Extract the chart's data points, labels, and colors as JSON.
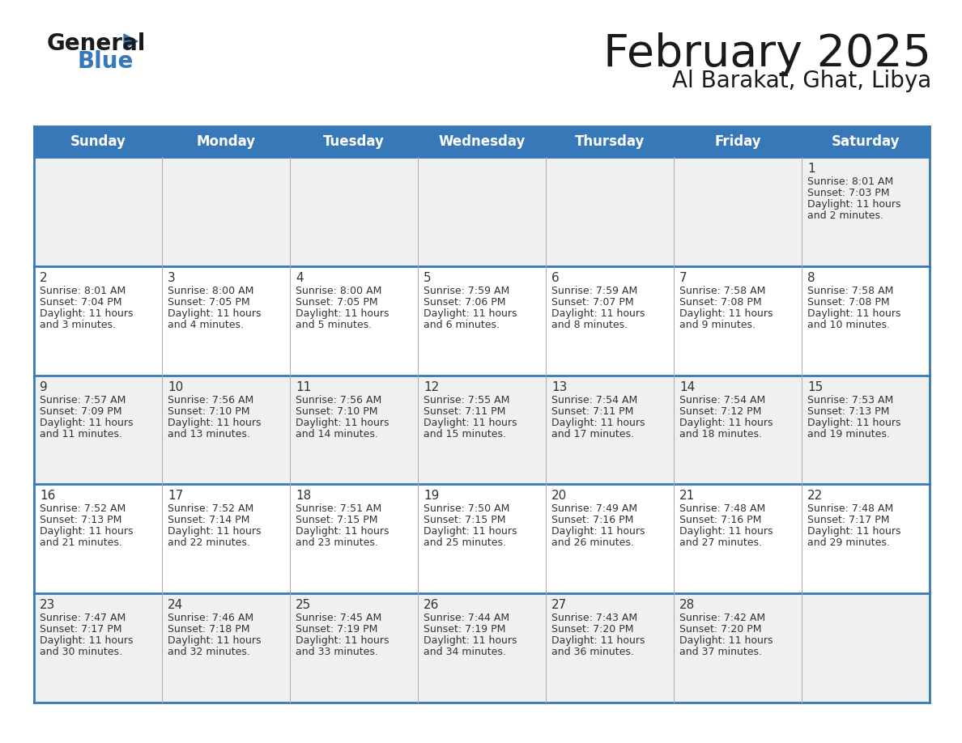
{
  "title": "February 2025",
  "subtitle": "Al Barakat, Ghat, Libya",
  "header_color": "#3778b8",
  "header_text_color": "#ffffff",
  "day_names": [
    "Sunday",
    "Monday",
    "Tuesday",
    "Wednesday",
    "Thursday",
    "Friday",
    "Saturday"
  ],
  "bg_color": "#ffffff",
  "cell_bg_even": "#f0f0f0",
  "cell_bg_odd": "#ffffff",
  "text_color": "#333333",
  "line_color": "#3778b8",
  "vert_line_color": "#aaaaaa",
  "days": [
    {
      "date": 1,
      "col": 6,
      "row": 0,
      "sunrise": "8:01 AM",
      "sunset": "7:03 PM",
      "daylight": "11 hours and 2 minutes."
    },
    {
      "date": 2,
      "col": 0,
      "row": 1,
      "sunrise": "8:01 AM",
      "sunset": "7:04 PM",
      "daylight": "11 hours and 3 minutes."
    },
    {
      "date": 3,
      "col": 1,
      "row": 1,
      "sunrise": "8:00 AM",
      "sunset": "7:05 PM",
      "daylight": "11 hours and 4 minutes."
    },
    {
      "date": 4,
      "col": 2,
      "row": 1,
      "sunrise": "8:00 AM",
      "sunset": "7:05 PM",
      "daylight": "11 hours and 5 minutes."
    },
    {
      "date": 5,
      "col": 3,
      "row": 1,
      "sunrise": "7:59 AM",
      "sunset": "7:06 PM",
      "daylight": "11 hours and 6 minutes."
    },
    {
      "date": 6,
      "col": 4,
      "row": 1,
      "sunrise": "7:59 AM",
      "sunset": "7:07 PM",
      "daylight": "11 hours and 8 minutes."
    },
    {
      "date": 7,
      "col": 5,
      "row": 1,
      "sunrise": "7:58 AM",
      "sunset": "7:08 PM",
      "daylight": "11 hours and 9 minutes."
    },
    {
      "date": 8,
      "col": 6,
      "row": 1,
      "sunrise": "7:58 AM",
      "sunset": "7:08 PM",
      "daylight": "11 hours and 10 minutes."
    },
    {
      "date": 9,
      "col": 0,
      "row": 2,
      "sunrise": "7:57 AM",
      "sunset": "7:09 PM",
      "daylight": "11 hours and 11 minutes."
    },
    {
      "date": 10,
      "col": 1,
      "row": 2,
      "sunrise": "7:56 AM",
      "sunset": "7:10 PM",
      "daylight": "11 hours and 13 minutes."
    },
    {
      "date": 11,
      "col": 2,
      "row": 2,
      "sunrise": "7:56 AM",
      "sunset": "7:10 PM",
      "daylight": "11 hours and 14 minutes."
    },
    {
      "date": 12,
      "col": 3,
      "row": 2,
      "sunrise": "7:55 AM",
      "sunset": "7:11 PM",
      "daylight": "11 hours and 15 minutes."
    },
    {
      "date": 13,
      "col": 4,
      "row": 2,
      "sunrise": "7:54 AM",
      "sunset": "7:11 PM",
      "daylight": "11 hours and 17 minutes."
    },
    {
      "date": 14,
      "col": 5,
      "row": 2,
      "sunrise": "7:54 AM",
      "sunset": "7:12 PM",
      "daylight": "11 hours and 18 minutes."
    },
    {
      "date": 15,
      "col": 6,
      "row": 2,
      "sunrise": "7:53 AM",
      "sunset": "7:13 PM",
      "daylight": "11 hours and 19 minutes."
    },
    {
      "date": 16,
      "col": 0,
      "row": 3,
      "sunrise": "7:52 AM",
      "sunset": "7:13 PM",
      "daylight": "11 hours and 21 minutes."
    },
    {
      "date": 17,
      "col": 1,
      "row": 3,
      "sunrise": "7:52 AM",
      "sunset": "7:14 PM",
      "daylight": "11 hours and 22 minutes."
    },
    {
      "date": 18,
      "col": 2,
      "row": 3,
      "sunrise": "7:51 AM",
      "sunset": "7:15 PM",
      "daylight": "11 hours and 23 minutes."
    },
    {
      "date": 19,
      "col": 3,
      "row": 3,
      "sunrise": "7:50 AM",
      "sunset": "7:15 PM",
      "daylight": "11 hours and 25 minutes."
    },
    {
      "date": 20,
      "col": 4,
      "row": 3,
      "sunrise": "7:49 AM",
      "sunset": "7:16 PM",
      "daylight": "11 hours and 26 minutes."
    },
    {
      "date": 21,
      "col": 5,
      "row": 3,
      "sunrise": "7:48 AM",
      "sunset": "7:16 PM",
      "daylight": "11 hours and 27 minutes."
    },
    {
      "date": 22,
      "col": 6,
      "row": 3,
      "sunrise": "7:48 AM",
      "sunset": "7:17 PM",
      "daylight": "11 hours and 29 minutes."
    },
    {
      "date": 23,
      "col": 0,
      "row": 4,
      "sunrise": "7:47 AM",
      "sunset": "7:17 PM",
      "daylight": "11 hours and 30 minutes."
    },
    {
      "date": 24,
      "col": 1,
      "row": 4,
      "sunrise": "7:46 AM",
      "sunset": "7:18 PM",
      "daylight": "11 hours and 32 minutes."
    },
    {
      "date": 25,
      "col": 2,
      "row": 4,
      "sunrise": "7:45 AM",
      "sunset": "7:19 PM",
      "daylight": "11 hours and 33 minutes."
    },
    {
      "date": 26,
      "col": 3,
      "row": 4,
      "sunrise": "7:44 AM",
      "sunset": "7:19 PM",
      "daylight": "11 hours and 34 minutes."
    },
    {
      "date": 27,
      "col": 4,
      "row": 4,
      "sunrise": "7:43 AM",
      "sunset": "7:20 PM",
      "daylight": "11 hours and 36 minutes."
    },
    {
      "date": 28,
      "col": 5,
      "row": 4,
      "sunrise": "7:42 AM",
      "sunset": "7:20 PM",
      "daylight": "11 hours and 37 minutes."
    }
  ]
}
